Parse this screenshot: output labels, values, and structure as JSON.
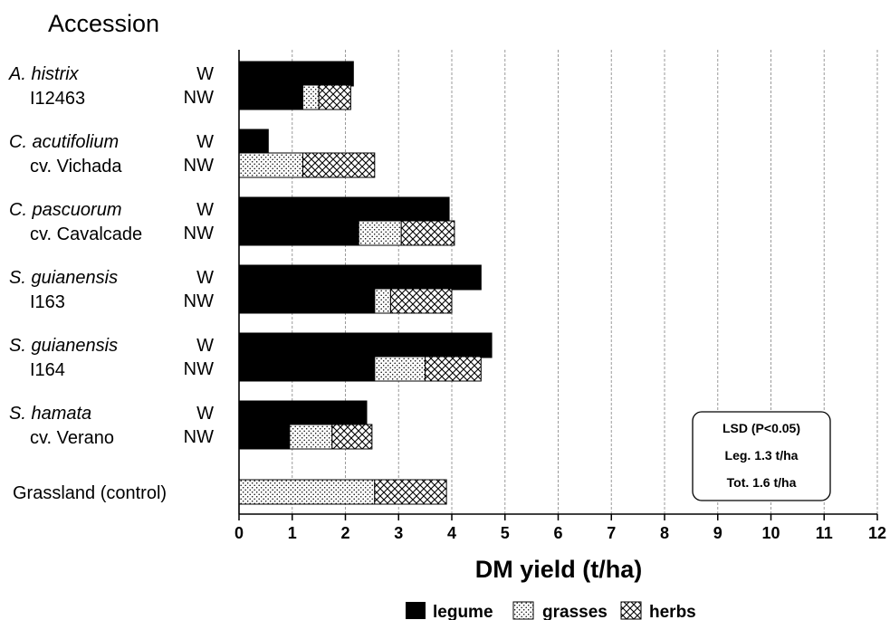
{
  "chart_data": {
    "type": "bar",
    "orientation": "horizontal",
    "stacked": true,
    "title": "Accession",
    "xlabel": "DM yield (t/ha)",
    "xlim": [
      0,
      12
    ],
    "xticks": [
      0,
      1,
      2,
      3,
      4,
      5,
      6,
      7,
      8,
      9,
      10,
      11,
      12
    ],
    "grid": "vertical",
    "legend_position": "bottom",
    "legend": [
      {
        "name": "legume",
        "pattern": "solid",
        "color": "#000000"
      },
      {
        "name": "grasses",
        "pattern": "dots",
        "color": "#ffffff"
      },
      {
        "name": "herbs",
        "pattern": "crosshatch",
        "color": "#ffffff"
      }
    ],
    "accessions": [
      {
        "name": "A. histrix",
        "name_italic": true,
        "sub": "I12463",
        "rows": [
          {
            "label": "W",
            "legume": 2.15,
            "grasses": 0,
            "herbs": 0
          },
          {
            "label": "NW",
            "legume": 1.2,
            "grasses": 0.3,
            "herbs": 0.6
          }
        ]
      },
      {
        "name": "C. acutifolium",
        "name_italic": true,
        "sub": "cv. Vichada",
        "rows": [
          {
            "label": "W",
            "legume": 0.55,
            "grasses": 0,
            "herbs": 0
          },
          {
            "label": "NW",
            "legume": 0,
            "grasses": 1.2,
            "herbs": 1.35
          }
        ]
      },
      {
        "name": "C. pascuorum",
        "name_italic": true,
        "sub": "cv. Cavalcade",
        "rows": [
          {
            "label": "W",
            "legume": 3.95,
            "grasses": 0,
            "herbs": 0
          },
          {
            "label": "NW",
            "legume": 2.25,
            "grasses": 0.8,
            "herbs": 1.0
          }
        ]
      },
      {
        "name": "S. guianensis",
        "name_italic": true,
        "sub": "I163",
        "rows": [
          {
            "label": "W",
            "legume": 4.55,
            "grasses": 0,
            "herbs": 0
          },
          {
            "label": "NW",
            "legume": 2.55,
            "grasses": 0.3,
            "herbs": 1.15
          }
        ]
      },
      {
        "name": "S. guianensis",
        "name_italic": true,
        "sub": "I164",
        "rows": [
          {
            "label": "W",
            "legume": 4.75,
            "grasses": 0,
            "herbs": 0
          },
          {
            "label": "NW",
            "legume": 2.55,
            "grasses": 0.95,
            "herbs": 1.05
          }
        ]
      },
      {
        "name": "S. hamata",
        "name_italic": true,
        "sub": "cv. Verano",
        "rows": [
          {
            "label": "W",
            "legume": 2.4,
            "grasses": 0,
            "herbs": 0
          },
          {
            "label": "NW",
            "legume": 0.95,
            "grasses": 0.8,
            "herbs": 0.75
          }
        ]
      },
      {
        "name": "Grassland (control)",
        "name_italic": false,
        "sub": "",
        "rows": [
          {
            "label": "",
            "legume": 0,
            "grasses": 2.55,
            "herbs": 1.35
          }
        ]
      }
    ],
    "annotation": {
      "title": "LSD (P<0.05)",
      "lines": [
        "Leg.  1.3 t/ha",
        "Tot.  1.6 t/ha"
      ]
    }
  }
}
